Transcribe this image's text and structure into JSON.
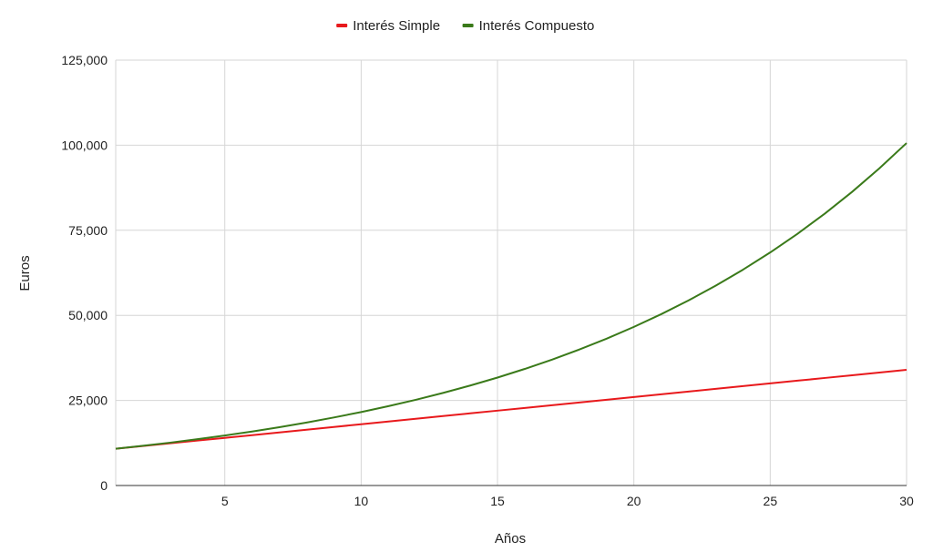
{
  "chart_data": {
    "type": "line",
    "xlabel": "Años",
    "ylabel": "Euros",
    "xlim": [
      1,
      30
    ],
    "ylim": [
      0,
      125000
    ],
    "x_ticks": [
      5,
      10,
      15,
      20,
      25,
      30
    ],
    "y_ticks": [
      0,
      25000,
      50000,
      75000,
      100000,
      125000
    ],
    "y_tick_labels": [
      "0",
      "25,000",
      "50,000",
      "75,000",
      "100,000",
      "125,000"
    ],
    "grid": true,
    "legend_position": "top-center",
    "x": [
      1,
      2,
      3,
      4,
      5,
      6,
      7,
      8,
      9,
      10,
      11,
      12,
      13,
      14,
      15,
      16,
      17,
      18,
      19,
      20,
      21,
      22,
      23,
      24,
      25,
      26,
      27,
      28,
      29,
      30
    ],
    "series": [
      {
        "name": "Interés Simple",
        "color": "#e8191c",
        "values": [
          10800,
          11600,
          12400,
          13200,
          14000,
          14800,
          15600,
          16400,
          17200,
          18000,
          18800,
          19600,
          20400,
          21200,
          22000,
          22800,
          23600,
          24400,
          25200,
          26000,
          26800,
          27600,
          28400,
          29200,
          30000,
          30800,
          31600,
          32400,
          33200,
          34000
        ]
      },
      {
        "name": "Interés Compuesto",
        "color": "#3a7a1a",
        "values": [
          10800,
          11664,
          12597,
          13605,
          14693,
          15869,
          17138,
          18509,
          19990,
          21589,
          23316,
          25182,
          27196,
          29372,
          31722,
          34259,
          37000,
          39960,
          43157,
          46610,
          50338,
          54365,
          58715,
          63412,
          68485,
          73964,
          79881,
          86271,
          93173,
          100627
        ]
      }
    ]
  }
}
